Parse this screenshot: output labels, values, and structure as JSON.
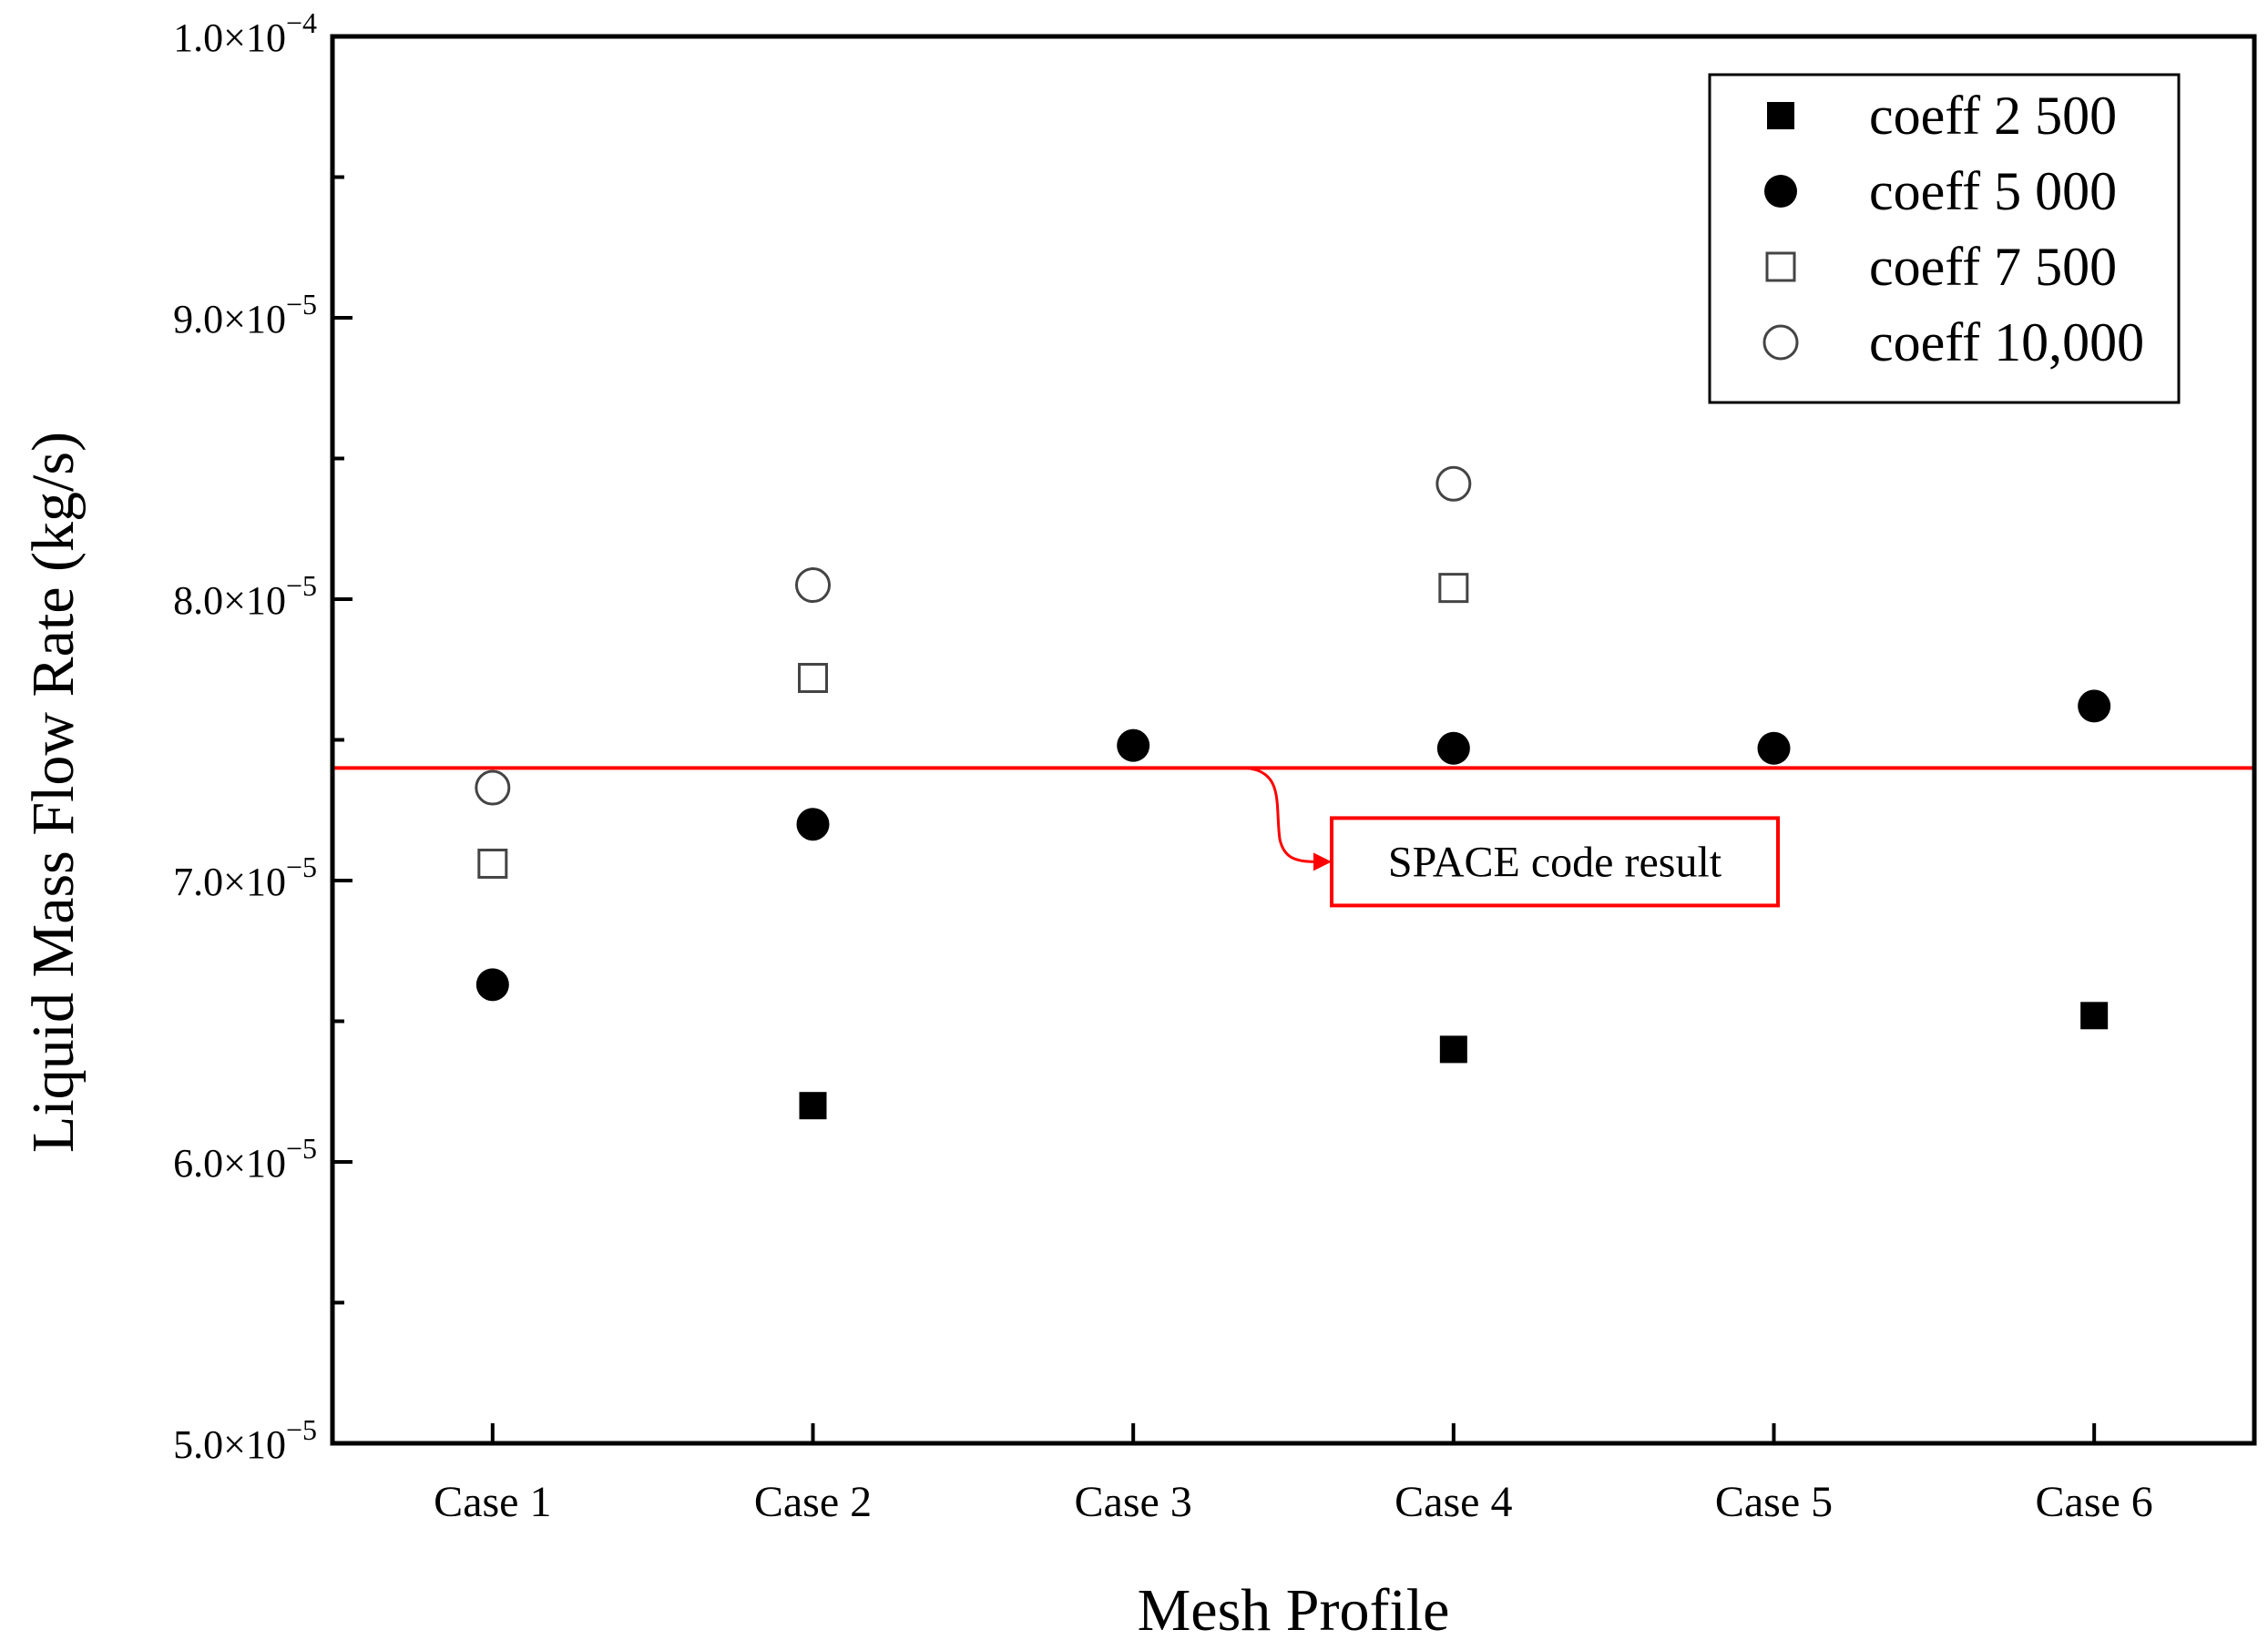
{
  "chart_data": {
    "type": "scatter",
    "title": "",
    "xlabel": "Mesh Profile",
    "ylabel": "Liquid Mass Flow Rate (kg/s)",
    "categories": [
      "Case 1",
      "Case 2",
      "Case 3",
      "Case 4",
      "Case 5",
      "Case 6"
    ],
    "ylim": [
      5e-05,
      0.0001
    ],
    "y_ticks": [
      {
        "value": 5e-05,
        "mantissa": "5.0",
        "exponent": "−5"
      },
      {
        "value": 6e-05,
        "mantissa": "6.0",
        "exponent": "−5"
      },
      {
        "value": 7e-05,
        "mantissa": "7.0",
        "exponent": "−5"
      },
      {
        "value": 8e-05,
        "mantissa": "8.0",
        "exponent": "−5"
      },
      {
        "value": 9e-05,
        "mantissa": "9.0",
        "exponent": "−5"
      },
      {
        "value": 0.0001,
        "mantissa": "1.0",
        "exponent": "−4"
      }
    ],
    "y_minor_step": 5e-06,
    "grid": false,
    "legend_position": "top-right",
    "series": [
      {
        "name": "coeff 2 500",
        "marker": "filled-square",
        "values": [
          null,
          6.2e-05,
          null,
          6.4e-05,
          null,
          6.52e-05
        ]
      },
      {
        "name": "coeff 5 000",
        "marker": "filled-circle",
        "values": [
          6.63e-05,
          7.2e-05,
          7.48e-05,
          7.47e-05,
          7.47e-05,
          7.62e-05
        ]
      },
      {
        "name": "coeff 7 500",
        "marker": "open-square",
        "values": [
          7.06e-05,
          7.72e-05,
          null,
          8.04e-05,
          null,
          null
        ]
      },
      {
        "name": "coeff 10,000",
        "marker": "open-circle",
        "values": [
          7.33e-05,
          8.05e-05,
          null,
          8.41e-05,
          null,
          null
        ]
      }
    ],
    "reference_line": {
      "value": 7.4e-05,
      "color": "#ff0000",
      "label": "SPACE code result"
    }
  }
}
